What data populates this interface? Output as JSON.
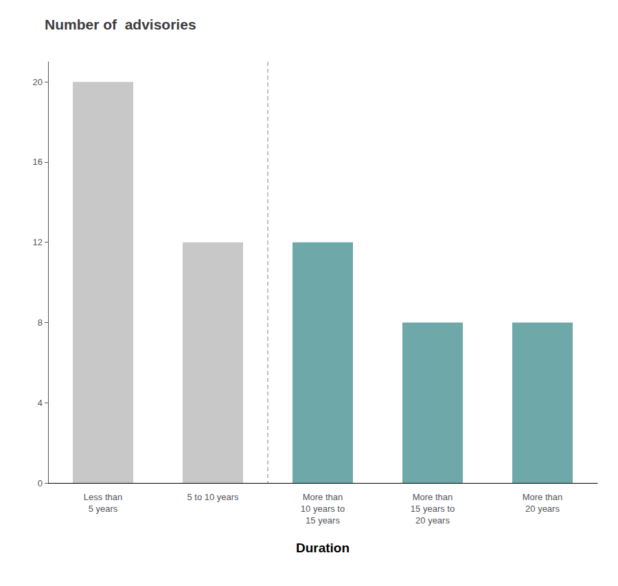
{
  "chart_data": {
    "type": "bar",
    "title": "Number of  advisories",
    "xlabel": "Duration",
    "categories": [
      "Less than\n5 years",
      "5 to 10 years",
      "More than\n10 years to\n15 years",
      "More than\n15 years to\n20 years",
      "More than\n20 years"
    ],
    "values": [
      20,
      12,
      12,
      8,
      8
    ],
    "colors": [
      "#c8c8c8",
      "#c8c8c8",
      "#6fa8a8",
      "#6fa8a8",
      "#6fa8a8"
    ],
    "ylim": [
      0,
      21
    ],
    "yticks": [
      0,
      4,
      8,
      12,
      16,
      20
    ],
    "grid": false
  }
}
